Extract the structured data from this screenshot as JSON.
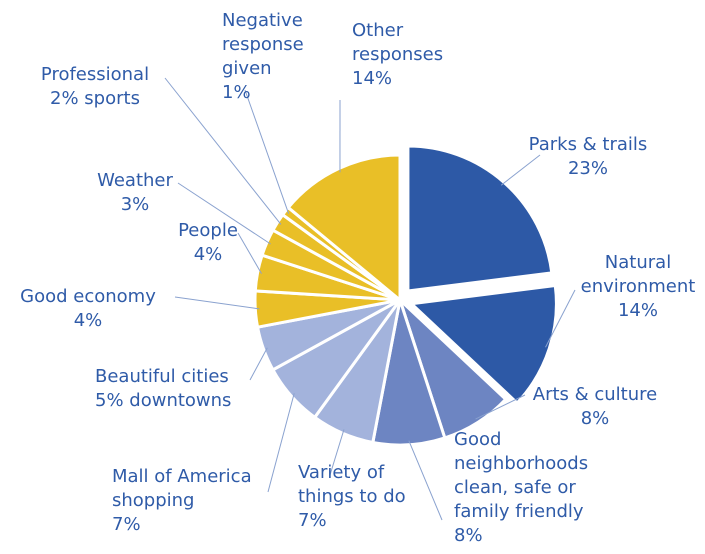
{
  "chart_data": {
    "type": "pie",
    "title": "",
    "slices": [
      {
        "label": "Parks & trails",
        "display_value": "23%",
        "value": 23,
        "color": "#2d59a6",
        "exploded": true
      },
      {
        "label": "Natural environment",
        "display_value": "14%",
        "value": 14,
        "color": "#2d59a6",
        "exploded": true
      },
      {
        "label": "Arts & culture",
        "display_value": "8%",
        "value": 8,
        "color": "#6d85c2",
        "exploded": false
      },
      {
        "label": "Good neighborhoods clean, safe or family friendly",
        "display_value": "8%",
        "value": 8,
        "color": "#6d85c2",
        "exploded": false
      },
      {
        "label": "Variety of things to do",
        "display_value": "7%",
        "value": 7,
        "color": "#a3b3dc",
        "exploded": false
      },
      {
        "label": "Mall of America shopping",
        "display_value": "7%",
        "value": 7,
        "color": "#a3b3dc",
        "exploded": false
      },
      {
        "label": "Beautiful cities downtowns",
        "display_value": "5%",
        "value": 5,
        "color": "#a3b3dc",
        "exploded": false
      },
      {
        "label": "Good economy",
        "display_value": "4%",
        "value": 4,
        "color": "#e9bf27",
        "exploded": false
      },
      {
        "label": "People",
        "display_value": "4%",
        "value": 4,
        "color": "#e9bf27",
        "exploded": false
      },
      {
        "label": "Weather",
        "display_value": "3%",
        "value": 3,
        "color": "#e9bf27",
        "exploded": false
      },
      {
        "label": "Professional sports",
        "display_value": "2%",
        "value": 2,
        "color": "#e9bf27",
        "exploded": false
      },
      {
        "label": "Negative response given",
        "display_value": "1%",
        "value": 1,
        "color": "#e9bf27",
        "exploded": false
      },
      {
        "label": "Other responses",
        "display_value": "14%",
        "value": 14,
        "color": "#e9bf27",
        "exploded": false
      }
    ],
    "label_color": "#2f5ba8",
    "leader_line_color": "#8aa2cf"
  }
}
